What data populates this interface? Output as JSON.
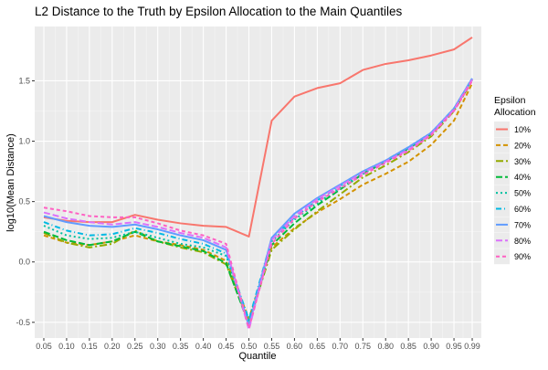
{
  "chart_data": {
    "type": "line",
    "title": "L2 Distance to the Truth by Epsilon Allocation to the Main Quantiles",
    "xlabel": "Quantile",
    "ylabel": "log10(Mean Distance)",
    "x_tick_labels": [
      "0.05",
      "0.10",
      "0.15",
      "0.20",
      "0.25",
      "0.30",
      "0.35",
      "0.40",
      "0.45",
      "0.50",
      "0.55",
      "0.60",
      "0.65",
      "0.70",
      "0.75",
      "0.80",
      "0.85",
      "0.90",
      "0.95",
      "0.99"
    ],
    "y_ticks": [
      -0.5,
      0.0,
      0.5,
      1.0,
      1.5
    ],
    "y_tick_labels": [
      "-0.5",
      "0.0",
      "0.5",
      "1.0",
      "1.5"
    ],
    "xlim": [
      0.03,
      1.01
    ],
    "ylim": [
      -0.63,
      1.95
    ],
    "grid": true,
    "legend": {
      "title_line1": "Epsilon",
      "title_line2": "Allocation",
      "position": "right"
    },
    "x": [
      0.05,
      0.1,
      0.15,
      0.2,
      0.25,
      0.3,
      0.35,
      0.4,
      0.45,
      0.5,
      0.55,
      0.6,
      0.65,
      0.7,
      0.75,
      0.8,
      0.85,
      0.9,
      0.95,
      0.99
    ],
    "series": [
      {
        "name": "10%",
        "color": "#F8766D",
        "dash": "",
        "values": [
          0.37,
          0.34,
          0.33,
          0.33,
          0.39,
          0.35,
          0.32,
          0.3,
          0.29,
          0.21,
          1.17,
          1.37,
          1.44,
          1.48,
          1.59,
          1.64,
          1.67,
          1.71,
          1.76,
          1.86
        ]
      },
      {
        "name": "20%",
        "color": "#D39200",
        "dash": "5,3",
        "values": [
          0.22,
          0.16,
          0.14,
          0.17,
          0.22,
          0.17,
          0.14,
          0.1,
          0.01,
          -0.47,
          0.12,
          0.28,
          0.41,
          0.52,
          0.64,
          0.73,
          0.83,
          0.97,
          1.17,
          1.48
        ]
      },
      {
        "name": "30%",
        "color": "#93AA00",
        "dash": "8,3,2,3",
        "values": [
          0.24,
          0.16,
          0.12,
          0.15,
          0.26,
          0.17,
          0.12,
          0.08,
          -0.02,
          -0.5,
          0.1,
          0.27,
          0.42,
          0.56,
          0.7,
          0.8,
          0.91,
          1.04,
          1.25,
          1.5
        ]
      },
      {
        "name": "40%",
        "color": "#00BA38",
        "dash": "7,3",
        "values": [
          0.25,
          0.18,
          0.14,
          0.17,
          0.25,
          0.17,
          0.13,
          0.09,
          -0.01,
          -0.52,
          0.14,
          0.32,
          0.47,
          0.6,
          0.73,
          0.83,
          0.94,
          1.06,
          1.27,
          1.51
        ]
      },
      {
        "name": "50%",
        "color": "#00C19F",
        "dash": "2,3",
        "values": [
          0.3,
          0.22,
          0.19,
          0.2,
          0.25,
          0.2,
          0.15,
          0.12,
          0.05,
          -0.5,
          0.17,
          0.35,
          0.49,
          0.61,
          0.73,
          0.83,
          0.94,
          1.06,
          1.27,
          1.52
        ]
      },
      {
        "name": "60%",
        "color": "#00B9E3",
        "dash": "6,3,1,3",
        "values": [
          0.33,
          0.26,
          0.22,
          0.23,
          0.28,
          0.24,
          0.19,
          0.15,
          0.07,
          -0.48,
          0.19,
          0.37,
          0.51,
          0.63,
          0.75,
          0.84,
          0.95,
          1.07,
          1.27,
          1.52
        ]
      },
      {
        "name": "70%",
        "color": "#619CFF",
        "dash": "",
        "values": [
          0.38,
          0.33,
          0.3,
          0.29,
          0.31,
          0.27,
          0.22,
          0.18,
          0.1,
          -0.53,
          0.2,
          0.4,
          0.53,
          0.64,
          0.75,
          0.84,
          0.95,
          1.07,
          1.27,
          1.52
        ]
      },
      {
        "name": "80%",
        "color": "#DB72FB",
        "dash": "7,3",
        "values": [
          0.41,
          0.36,
          0.33,
          0.31,
          0.33,
          0.29,
          0.24,
          0.2,
          0.12,
          -0.56,
          0.18,
          0.38,
          0.52,
          0.63,
          0.74,
          0.83,
          0.93,
          1.06,
          1.26,
          1.51
        ]
      },
      {
        "name": "90%",
        "color": "#FF61C3",
        "dash": "4,3",
        "values": [
          0.45,
          0.42,
          0.38,
          0.37,
          0.37,
          0.32,
          0.26,
          0.22,
          0.15,
          -0.55,
          0.15,
          0.36,
          0.5,
          0.61,
          0.72,
          0.82,
          0.92,
          1.05,
          1.25,
          1.5
        ]
      }
    ]
  }
}
